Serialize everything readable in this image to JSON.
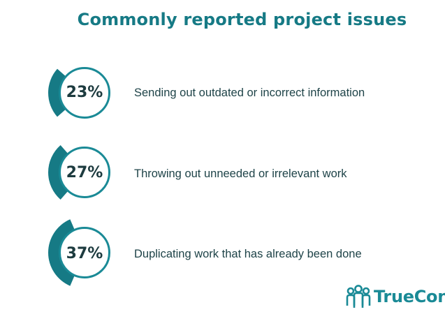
{
  "chart_data": {
    "type": "pie",
    "title": "Commonly reported project issues",
    "categories": [
      "Sending out outdated or incorrect information",
      "Throwing out unneeded or irrelevant work",
      "Duplicating work that has already been done"
    ],
    "values": [
      23,
      27,
      37
    ],
    "value_labels": [
      "23%",
      "27%",
      "37%"
    ],
    "unit": "%",
    "colors": {
      "arc": "#167a85",
      "ring": "#1a8a96",
      "title": "#167a85",
      "text": "#1e4348"
    }
  },
  "brand": {
    "name": "TrueConf",
    "icon": "people-group-icon"
  }
}
